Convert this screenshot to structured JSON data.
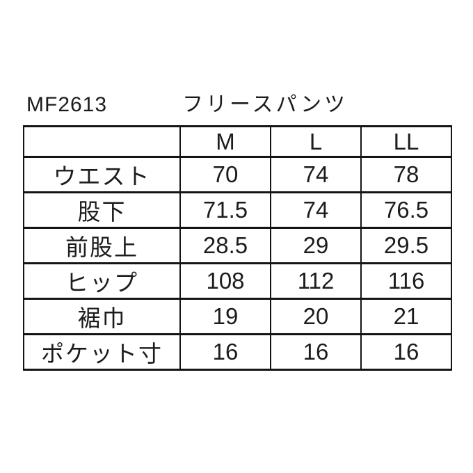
{
  "page": {
    "background": "#ffffff",
    "text_color": "#1c1c1c",
    "border_color": "#141414"
  },
  "header": {
    "product_code": "MF2613",
    "product_name": "フリースパンツ"
  },
  "table": {
    "columns": [
      "",
      "M",
      "L",
      "LL"
    ],
    "rows": [
      {
        "label": "ウエスト",
        "values": [
          "70",
          "74",
          "78"
        ]
      },
      {
        "label": "股下",
        "values": [
          "71.5",
          "74",
          "76.5"
        ]
      },
      {
        "label": "前股上",
        "values": [
          "28.5",
          "29",
          "29.5"
        ]
      },
      {
        "label": "ヒップ",
        "values": [
          "108",
          "112",
          "116"
        ]
      },
      {
        "label": "裾巾",
        "values": [
          "19",
          "20",
          "21"
        ]
      },
      {
        "label": "ポケット寸",
        "values": [
          "16",
          "16",
          "16"
        ]
      }
    ]
  },
  "chart_data": {
    "type": "table",
    "title": "MF2613 フリースパンツ",
    "columns": [
      "",
      "M",
      "L",
      "LL"
    ],
    "rows": [
      [
        "ウエスト",
        70,
        74,
        78
      ],
      [
        "股下",
        71.5,
        74,
        76.5
      ],
      [
        "前股上",
        28.5,
        29,
        29.5
      ],
      [
        "ヒップ",
        108,
        112,
        116
      ],
      [
        "裾巾",
        19,
        20,
        21
      ],
      [
        "ポケット寸",
        16,
        16,
        16
      ]
    ]
  }
}
